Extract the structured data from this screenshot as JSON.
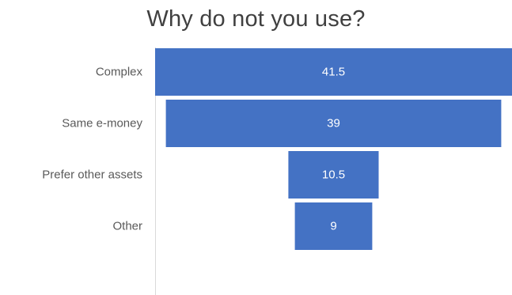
{
  "chart_data": {
    "type": "bar",
    "subtype": "funnel",
    "title": "Why do not you use?",
    "categories": [
      "Complex",
      "Same e-money",
      "Prefer other assets",
      "Other"
    ],
    "values": [
      41.5,
      39,
      10.5,
      9
    ],
    "value_labels": [
      "41.5",
      "39",
      "10.5",
      "9"
    ],
    "xlabel": "",
    "ylabel": "",
    "grid": false,
    "legend": "none",
    "bar_color": "#4472C4",
    "label_color": "#595959",
    "value_label_color": "#ffffff"
  }
}
